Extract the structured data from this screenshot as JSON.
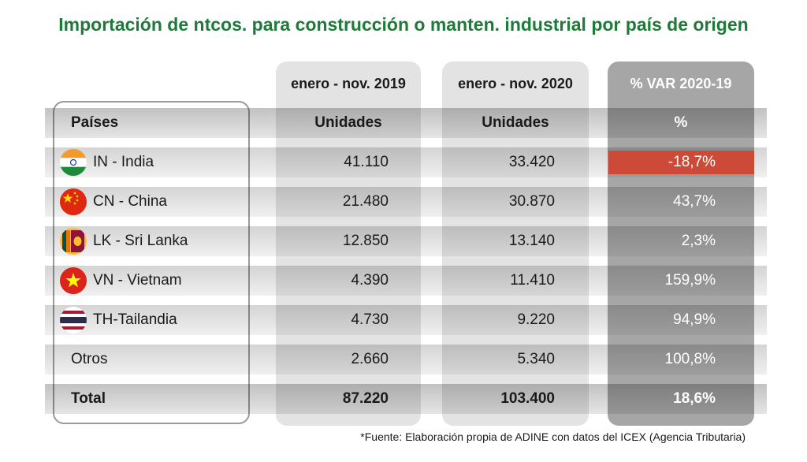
{
  "title": "Importación de ntcos. para construcción o manten. industrial por país de origen",
  "headers": {
    "col1_period": "enero - nov. 2019",
    "col2_period": "enero - nov. 2020",
    "col3_period": "% VAR 2020-19",
    "country_label": "Países",
    "col1_unit": "Unidades",
    "col2_unit": "Unidades",
    "col3_unit": "%"
  },
  "rows": [
    {
      "country": "IN - India",
      "flag": "india-flag-icon",
      "v2019": "41.110",
      "v2020": "33.420",
      "var": "-18,7%"
    },
    {
      "country": "CN - China",
      "flag": "china-flag-icon",
      "v2019": "21.480",
      "v2020": "30.870",
      "var": "43,7%"
    },
    {
      "country": "LK - Sri Lanka",
      "flag": "sri-lanka-flag-icon",
      "v2019": "12.850",
      "v2020": "13.140",
      "var": "2,3%"
    },
    {
      "country": "VN - Vietnam",
      "flag": "vietnam-flag-icon",
      "v2019": "4.390",
      "v2020": "11.410",
      "var": "159,9%"
    },
    {
      "country": "TH-Tailandia",
      "flag": "thailand-flag-icon",
      "v2019": "4.730",
      "v2020": "9.220",
      "var": "94,9%"
    },
    {
      "country": "Otros",
      "flag": "",
      "v2019": "2.660",
      "v2020": "5.340",
      "var": "100,8%"
    }
  ],
  "total": {
    "label": "Total",
    "v2019": "87.220",
    "v2020": "103.400",
    "var": "18,6%"
  },
  "colors": {
    "title": "#1f7a3a",
    "negative": "#cd4a38",
    "var_column": "#a6a6a6"
  },
  "source": "*Fuente: Elaboración propia de ADINE con datos del ICEX (Agencia Tributaria)"
}
